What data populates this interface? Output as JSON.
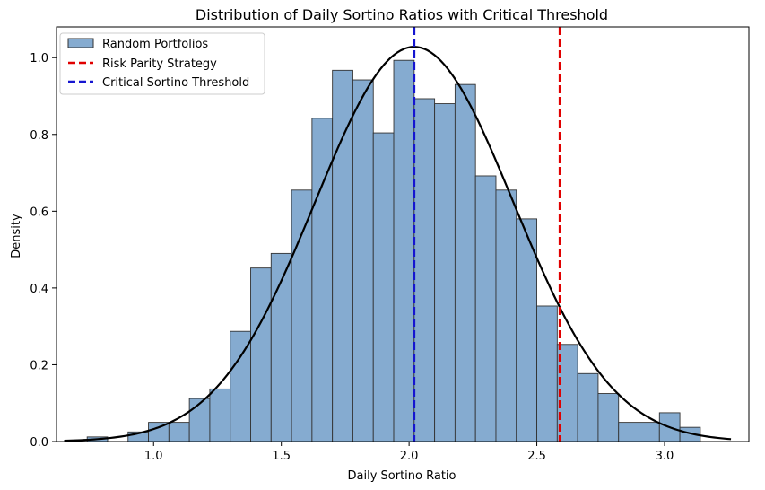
{
  "chart_data": {
    "type": "histogram",
    "title": "Distribution of Daily Sortino Ratios with Critical Threshold",
    "xlabel": "Daily Sortino Ratio",
    "ylabel": "Density",
    "xlim": [
      0.62,
      3.33
    ],
    "ylim": [
      0.0,
      1.08
    ],
    "xticks": [
      1.0,
      1.5,
      2.0,
      2.5,
      3.0
    ],
    "xtick_labels": [
      "1.0",
      "1.5",
      "2.0",
      "2.5",
      "3.0"
    ],
    "yticks": [
      0.0,
      0.2,
      0.4,
      0.6,
      0.8,
      1.0
    ],
    "ytick_labels": [
      "0.0",
      "0.2",
      "0.4",
      "0.6",
      "0.8",
      "1.0"
    ],
    "bin_start": 0.74,
    "bin_width": 0.08,
    "densities": [
      0.012,
      0.0,
      0.025,
      0.05,
      0.05,
      0.112,
      0.137,
      0.287,
      0.452,
      0.49,
      0.655,
      0.842,
      0.967,
      0.942,
      0.804,
      0.993,
      0.893,
      0.88,
      0.93,
      0.692,
      0.655,
      0.58,
      0.353,
      0.253,
      0.177,
      0.125,
      0.05,
      0.05,
      0.075,
      0.037
    ],
    "fit_curve": {
      "mean": 2.02,
      "std": 0.388,
      "x_range": [
        0.65,
        3.26
      ],
      "color": "#000000"
    },
    "lines": [
      {
        "name": "Risk Parity Strategy",
        "x": 2.59,
        "color": "#e00000"
      },
      {
        "name": "Critical Sortino Threshold",
        "x": 2.02,
        "color": "#1515d0"
      }
    ],
    "bar_color": "#85abd0",
    "bar_edge": "#333333",
    "legend": {
      "position": "upper left",
      "entries": [
        {
          "label": "Random Portfolios",
          "kind": "patch"
        },
        {
          "label": "Risk Parity Strategy",
          "kind": "line"
        },
        {
          "label": "Critical Sortino Threshold",
          "kind": "line"
        }
      ]
    }
  }
}
